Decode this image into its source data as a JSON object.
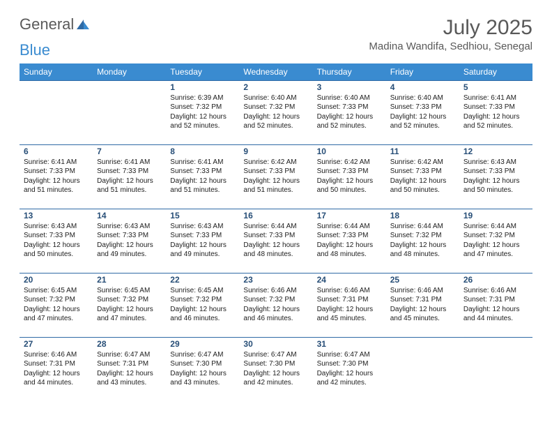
{
  "brand": {
    "part1": "General",
    "part2": "Blue"
  },
  "title": "July 2025",
  "location": "Madina Wandifa, Sedhiou, Senegal",
  "colors": {
    "header_bg": "#3a8bd0",
    "header_text": "#ffffff",
    "row_border": "#2f6aa5",
    "daynum": "#274e77",
    "body_text": "#202020",
    "title_text": "#595959",
    "logo_gray": "#5a5a5a",
    "logo_blue": "#3a8bd0"
  },
  "dayNames": [
    "Sunday",
    "Monday",
    "Tuesday",
    "Wednesday",
    "Thursday",
    "Friday",
    "Saturday"
  ],
  "weeks": [
    [
      null,
      null,
      {
        "n": "1",
        "sr": "6:39 AM",
        "ss": "7:32 PM",
        "dl": "12 hours and 52 minutes."
      },
      {
        "n": "2",
        "sr": "6:40 AM",
        "ss": "7:32 PM",
        "dl": "12 hours and 52 minutes."
      },
      {
        "n": "3",
        "sr": "6:40 AM",
        "ss": "7:33 PM",
        "dl": "12 hours and 52 minutes."
      },
      {
        "n": "4",
        "sr": "6:40 AM",
        "ss": "7:33 PM",
        "dl": "12 hours and 52 minutes."
      },
      {
        "n": "5",
        "sr": "6:41 AM",
        "ss": "7:33 PM",
        "dl": "12 hours and 52 minutes."
      }
    ],
    [
      {
        "n": "6",
        "sr": "6:41 AM",
        "ss": "7:33 PM",
        "dl": "12 hours and 51 minutes."
      },
      {
        "n": "7",
        "sr": "6:41 AM",
        "ss": "7:33 PM",
        "dl": "12 hours and 51 minutes."
      },
      {
        "n": "8",
        "sr": "6:41 AM",
        "ss": "7:33 PM",
        "dl": "12 hours and 51 minutes."
      },
      {
        "n": "9",
        "sr": "6:42 AM",
        "ss": "7:33 PM",
        "dl": "12 hours and 51 minutes."
      },
      {
        "n": "10",
        "sr": "6:42 AM",
        "ss": "7:33 PM",
        "dl": "12 hours and 50 minutes."
      },
      {
        "n": "11",
        "sr": "6:42 AM",
        "ss": "7:33 PM",
        "dl": "12 hours and 50 minutes."
      },
      {
        "n": "12",
        "sr": "6:43 AM",
        "ss": "7:33 PM",
        "dl": "12 hours and 50 minutes."
      }
    ],
    [
      {
        "n": "13",
        "sr": "6:43 AM",
        "ss": "7:33 PM",
        "dl": "12 hours and 50 minutes."
      },
      {
        "n": "14",
        "sr": "6:43 AM",
        "ss": "7:33 PM",
        "dl": "12 hours and 49 minutes."
      },
      {
        "n": "15",
        "sr": "6:43 AM",
        "ss": "7:33 PM",
        "dl": "12 hours and 49 minutes."
      },
      {
        "n": "16",
        "sr": "6:44 AM",
        "ss": "7:33 PM",
        "dl": "12 hours and 48 minutes."
      },
      {
        "n": "17",
        "sr": "6:44 AM",
        "ss": "7:33 PM",
        "dl": "12 hours and 48 minutes."
      },
      {
        "n": "18",
        "sr": "6:44 AM",
        "ss": "7:32 PM",
        "dl": "12 hours and 48 minutes."
      },
      {
        "n": "19",
        "sr": "6:44 AM",
        "ss": "7:32 PM",
        "dl": "12 hours and 47 minutes."
      }
    ],
    [
      {
        "n": "20",
        "sr": "6:45 AM",
        "ss": "7:32 PM",
        "dl": "12 hours and 47 minutes."
      },
      {
        "n": "21",
        "sr": "6:45 AM",
        "ss": "7:32 PM",
        "dl": "12 hours and 47 minutes."
      },
      {
        "n": "22",
        "sr": "6:45 AM",
        "ss": "7:32 PM",
        "dl": "12 hours and 46 minutes."
      },
      {
        "n": "23",
        "sr": "6:46 AM",
        "ss": "7:32 PM",
        "dl": "12 hours and 46 minutes."
      },
      {
        "n": "24",
        "sr": "6:46 AM",
        "ss": "7:31 PM",
        "dl": "12 hours and 45 minutes."
      },
      {
        "n": "25",
        "sr": "6:46 AM",
        "ss": "7:31 PM",
        "dl": "12 hours and 45 minutes."
      },
      {
        "n": "26",
        "sr": "6:46 AM",
        "ss": "7:31 PM",
        "dl": "12 hours and 44 minutes."
      }
    ],
    [
      {
        "n": "27",
        "sr": "6:46 AM",
        "ss": "7:31 PM",
        "dl": "12 hours and 44 minutes."
      },
      {
        "n": "28",
        "sr": "6:47 AM",
        "ss": "7:31 PM",
        "dl": "12 hours and 43 minutes."
      },
      {
        "n": "29",
        "sr": "6:47 AM",
        "ss": "7:30 PM",
        "dl": "12 hours and 43 minutes."
      },
      {
        "n": "30",
        "sr": "6:47 AM",
        "ss": "7:30 PM",
        "dl": "12 hours and 42 minutes."
      },
      {
        "n": "31",
        "sr": "6:47 AM",
        "ss": "7:30 PM",
        "dl": "12 hours and 42 minutes."
      },
      null,
      null
    ]
  ],
  "labels": {
    "sunrise": "Sunrise:",
    "sunset": "Sunset:",
    "daylight": "Daylight:"
  }
}
